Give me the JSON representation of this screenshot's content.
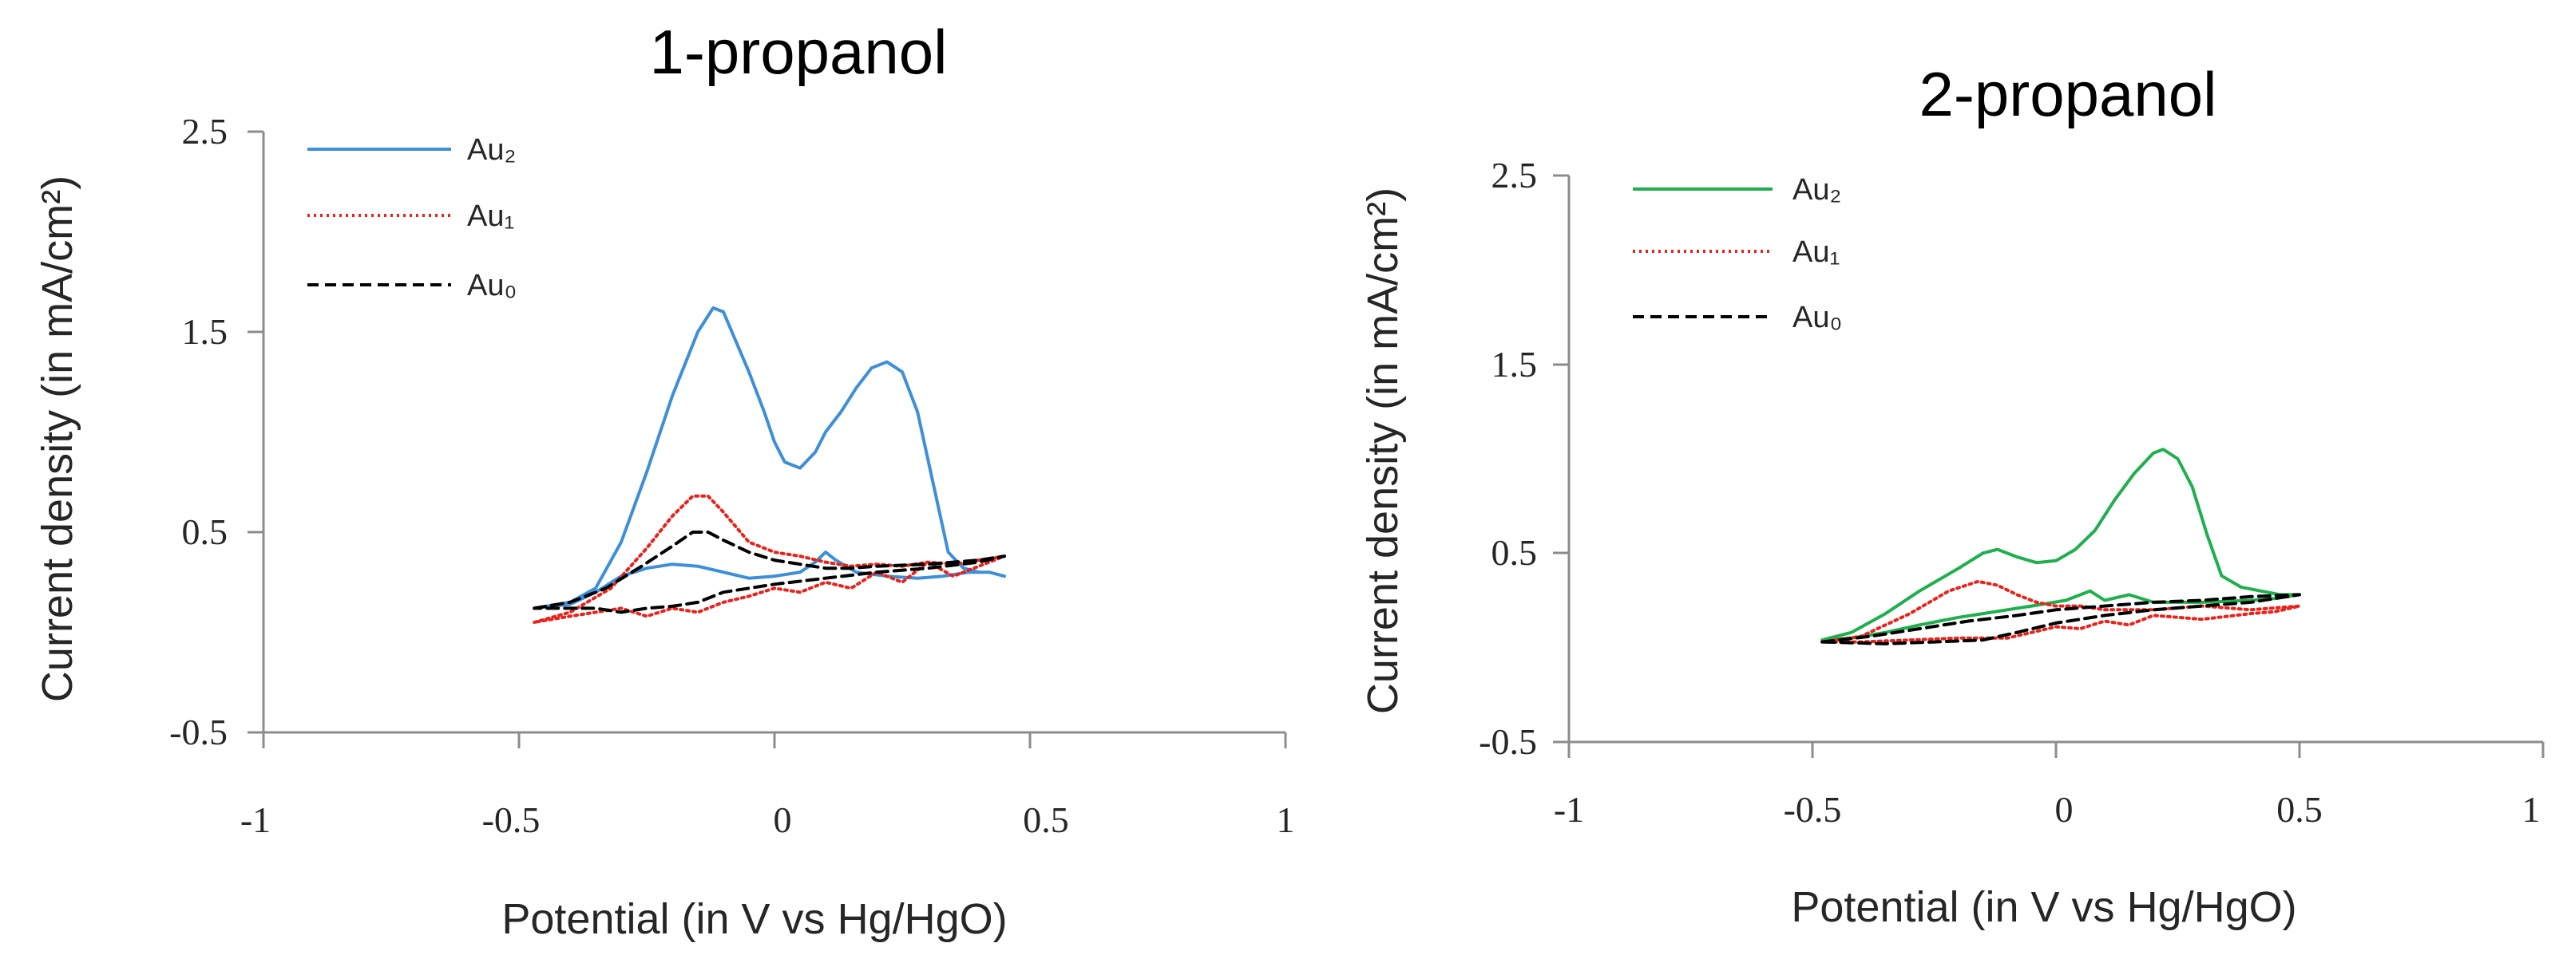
{
  "chart_data": [
    {
      "type": "line",
      "title": "1-propanol",
      "xlabel": "Potential (in V vs Hg/HgO)",
      "ylabel": "Current density (in mA/cm²)",
      "xlim": [
        -1,
        1
      ],
      "ylim": [
        -0.5,
        2.5
      ],
      "xticks": [
        -1,
        -0.5,
        0,
        0.5,
        1
      ],
      "xtick_labels": [
        "-1",
        "-0.5",
        "0",
        "0.5",
        "1"
      ],
      "yticks": [
        -0.5,
        0.5,
        1.5,
        2.5
      ],
      "ytick_labels": [
        "-0.5",
        "0.5",
        "1.5",
        "2.5"
      ],
      "legend_position": "top-left",
      "series": [
        {
          "name": "Au₂",
          "color": "#3d8fd9",
          "style": "solid",
          "x": [
            -0.47,
            -0.4,
            -0.35,
            -0.3,
            -0.25,
            -0.2,
            -0.15,
            -0.12,
            -0.1,
            -0.08,
            -0.05,
            -0.02,
            0.0,
            0.02,
            0.05,
            0.08,
            0.1,
            0.13,
            0.16,
            0.19,
            0.22,
            0.25,
            0.28,
            0.31,
            0.34,
            0.37,
            0.4,
            0.42,
            0.45,
            0.42,
            0.38,
            0.33,
            0.28,
            0.22,
            0.16,
            0.12,
            0.1,
            0.08,
            0.05,
            0.0,
            -0.05,
            -0.1,
            -0.15,
            -0.2,
            -0.25,
            -0.3,
            -0.35,
            -0.4,
            -0.47
          ],
          "y": [
            0.12,
            0.15,
            0.22,
            0.45,
            0.8,
            1.18,
            1.5,
            1.62,
            1.6,
            1.48,
            1.3,
            1.1,
            0.95,
            0.85,
            0.82,
            0.9,
            1.0,
            1.1,
            1.22,
            1.32,
            1.35,
            1.3,
            1.1,
            0.75,
            0.4,
            0.32,
            0.3,
            0.3,
            0.28,
            0.3,
            0.3,
            0.28,
            0.27,
            0.28,
            0.3,
            0.36,
            0.4,
            0.35,
            0.3,
            0.28,
            0.27,
            0.3,
            0.33,
            0.34,
            0.32,
            0.28,
            0.2,
            0.14,
            0.12
          ]
        },
        {
          "name": "Au₁",
          "color": "#e8231c",
          "style": "dotted",
          "x": [
            -0.47,
            -0.4,
            -0.32,
            -0.25,
            -0.2,
            -0.16,
            -0.13,
            -0.1,
            -0.05,
            0.0,
            0.05,
            0.1,
            0.15,
            0.2,
            0.25,
            0.3,
            0.35,
            0.4,
            0.45,
            0.4,
            0.35,
            0.3,
            0.25,
            0.2,
            0.15,
            0.1,
            0.05,
            0.0,
            -0.05,
            -0.1,
            -0.15,
            -0.2,
            -0.25,
            -0.3,
            -0.35,
            -0.4,
            -0.47
          ],
          "y": [
            0.05,
            0.1,
            0.22,
            0.42,
            0.58,
            0.68,
            0.68,
            0.6,
            0.45,
            0.4,
            0.38,
            0.35,
            0.33,
            0.34,
            0.33,
            0.35,
            0.34,
            0.36,
            0.38,
            0.33,
            0.28,
            0.35,
            0.25,
            0.3,
            0.22,
            0.25,
            0.2,
            0.22,
            0.18,
            0.15,
            0.1,
            0.12,
            0.08,
            0.12,
            0.1,
            0.08,
            0.05
          ]
        },
        {
          "name": "Au₀",
          "color": "#000000",
          "style": "dashed",
          "x": [
            -0.47,
            -0.4,
            -0.33,
            -0.26,
            -0.2,
            -0.16,
            -0.13,
            -0.1,
            -0.05,
            0.0,
            0.05,
            0.1,
            0.15,
            0.2,
            0.3,
            0.4,
            0.45,
            0.4,
            0.3,
            0.2,
            0.1,
            0.0,
            -0.05,
            -0.1,
            -0.15,
            -0.2,
            -0.25,
            -0.3,
            -0.35,
            -0.4,
            -0.47
          ],
          "y": [
            0.12,
            0.15,
            0.22,
            0.33,
            0.43,
            0.5,
            0.5,
            0.46,
            0.4,
            0.36,
            0.34,
            0.32,
            0.32,
            0.33,
            0.34,
            0.36,
            0.38,
            0.35,
            0.32,
            0.3,
            0.27,
            0.24,
            0.22,
            0.2,
            0.15,
            0.13,
            0.12,
            0.1,
            0.12,
            0.12,
            0.12
          ]
        }
      ]
    },
    {
      "type": "line",
      "title": "2-propanol",
      "xlabel": "Potential (in V vs Hg/HgO)",
      "ylabel": "Current density (in mA/cm²)",
      "xlim": [
        -1,
        1
      ],
      "ylim": [
        -0.5,
        2.5
      ],
      "xticks": [
        -1,
        -0.5,
        0,
        0.5,
        1
      ],
      "xtick_labels": [
        "-1",
        "-0.5",
        "0",
        "0.5",
        "1"
      ],
      "yticks": [
        -0.5,
        0.5,
        1.5,
        2.5
      ],
      "ytick_labels": [
        "-0.5",
        "0.5",
        "1.5",
        "2.5"
      ],
      "legend_position": "top-left",
      "series": [
        {
          "name": "Au₂",
          "color": "#1faf4e",
          "style": "solid",
          "x": [
            -0.48,
            -0.42,
            -0.35,
            -0.28,
            -0.2,
            -0.15,
            -0.12,
            -0.08,
            -0.04,
            0.0,
            0.04,
            0.08,
            0.12,
            0.16,
            0.2,
            0.22,
            0.25,
            0.28,
            0.31,
            0.34,
            0.38,
            0.42,
            0.46,
            0.5,
            0.45,
            0.4,
            0.3,
            0.2,
            0.15,
            0.1,
            0.07,
            0.02,
            -0.05,
            -0.1,
            -0.15,
            -0.2,
            -0.28,
            -0.35,
            -0.42,
            -0.48
          ],
          "y": [
            0.04,
            0.08,
            0.18,
            0.3,
            0.42,
            0.5,
            0.52,
            0.48,
            0.45,
            0.46,
            0.52,
            0.62,
            0.78,
            0.92,
            1.03,
            1.05,
            1.0,
            0.85,
            0.6,
            0.38,
            0.32,
            0.3,
            0.28,
            0.28,
            0.26,
            0.25,
            0.24,
            0.24,
            0.28,
            0.25,
            0.3,
            0.25,
            0.22,
            0.2,
            0.18,
            0.16,
            0.12,
            0.08,
            0.05,
            0.04
          ]
        },
        {
          "name": "Au₁",
          "color": "#e8231c",
          "style": "dotted",
          "x": [
            -0.48,
            -0.4,
            -0.3,
            -0.22,
            -0.16,
            -0.12,
            -0.08,
            -0.04,
            0.0,
            0.05,
            0.1,
            0.2,
            0.3,
            0.4,
            0.5,
            0.45,
            0.4,
            0.3,
            0.2,
            0.15,
            0.1,
            0.05,
            0.0,
            -0.05,
            -0.1,
            -0.2,
            -0.3,
            -0.4,
            -0.48
          ],
          "y": [
            0.03,
            0.06,
            0.18,
            0.3,
            0.35,
            0.33,
            0.28,
            0.24,
            0.22,
            0.22,
            0.2,
            0.2,
            0.22,
            0.2,
            0.22,
            0.19,
            0.18,
            0.15,
            0.17,
            0.12,
            0.14,
            0.1,
            0.11,
            0.08,
            0.05,
            0.05,
            0.04,
            0.03,
            0.03
          ]
        },
        {
          "name": "Au₀",
          "color": "#000000",
          "style": "dashed",
          "x": [
            -0.48,
            -0.38,
            -0.28,
            -0.18,
            -0.08,
            0.0,
            0.1,
            0.2,
            0.3,
            0.4,
            0.5,
            0.4,
            0.3,
            0.2,
            0.1,
            0.0,
            -0.08,
            -0.15,
            -0.25,
            -0.35,
            -0.48
          ],
          "y": [
            0.03,
            0.06,
            0.1,
            0.14,
            0.17,
            0.2,
            0.22,
            0.24,
            0.25,
            0.27,
            0.28,
            0.24,
            0.22,
            0.2,
            0.17,
            0.13,
            0.08,
            0.04,
            0.03,
            0.02,
            0.03
          ]
        }
      ]
    }
  ]
}
